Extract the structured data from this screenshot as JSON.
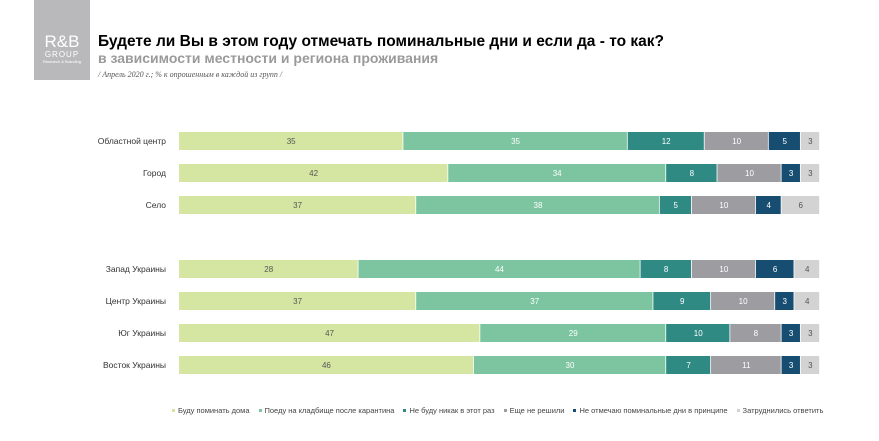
{
  "logo": {
    "main": "R&B",
    "sub": "GROUP",
    "tag": "Research & Branding"
  },
  "title": "Будете ли Вы в этом году отмечать поминальные дни и если да - то как?",
  "subtitle": "в зависимости местности и региона проживания",
  "note": "/ Апрель 2020 г.; % к опрошенным в каждой из групп /",
  "chart_data": {
    "type": "bar",
    "orientation": "horizontal",
    "stacked": true,
    "categories": [
      "Областной центр",
      "Город",
      "Село",
      "Запад Украины",
      "Центр Украины",
      "Юг Украины",
      "Восток Украины"
    ],
    "groups": [
      [
        0,
        1,
        2
      ],
      [
        3,
        4,
        5,
        6
      ]
    ],
    "series": [
      {
        "name": "Буду поминать дома",
        "color": "#d5e6a3",
        "label_color": "#555555",
        "values": [
          35,
          42,
          37,
          28,
          37,
          47,
          46
        ]
      },
      {
        "name": "Поеду на кладбище после карантина",
        "color": "#7dc4a0",
        "label_color": "#ffffff",
        "values": [
          35,
          34,
          38,
          44,
          37,
          29,
          30
        ]
      },
      {
        "name": "Не буду никак в этот раз",
        "color": "#2f8a84",
        "label_color": "#ffffff",
        "values": [
          12,
          8,
          5,
          8,
          9,
          10,
          7
        ]
      },
      {
        "name": "Еще не решили",
        "color": "#9d9da1",
        "label_color": "#ffffff",
        "values": [
          10,
          10,
          10,
          10,
          10,
          8,
          11
        ]
      },
      {
        "name": "Не отмечаю поминальные дни в принципе",
        "color": "#164d71",
        "label_color": "#ffffff",
        "values": [
          5,
          3,
          4,
          6,
          3,
          3,
          3
        ]
      },
      {
        "name": "Затруднились ответить",
        "color": "#d3d3d4",
        "label_color": "#555555",
        "values": [
          3,
          3,
          6,
          4,
          4,
          3,
          3
        ]
      }
    ],
    "xlim": [
      0,
      100
    ],
    "grid": false,
    "legend": "bottom"
  }
}
